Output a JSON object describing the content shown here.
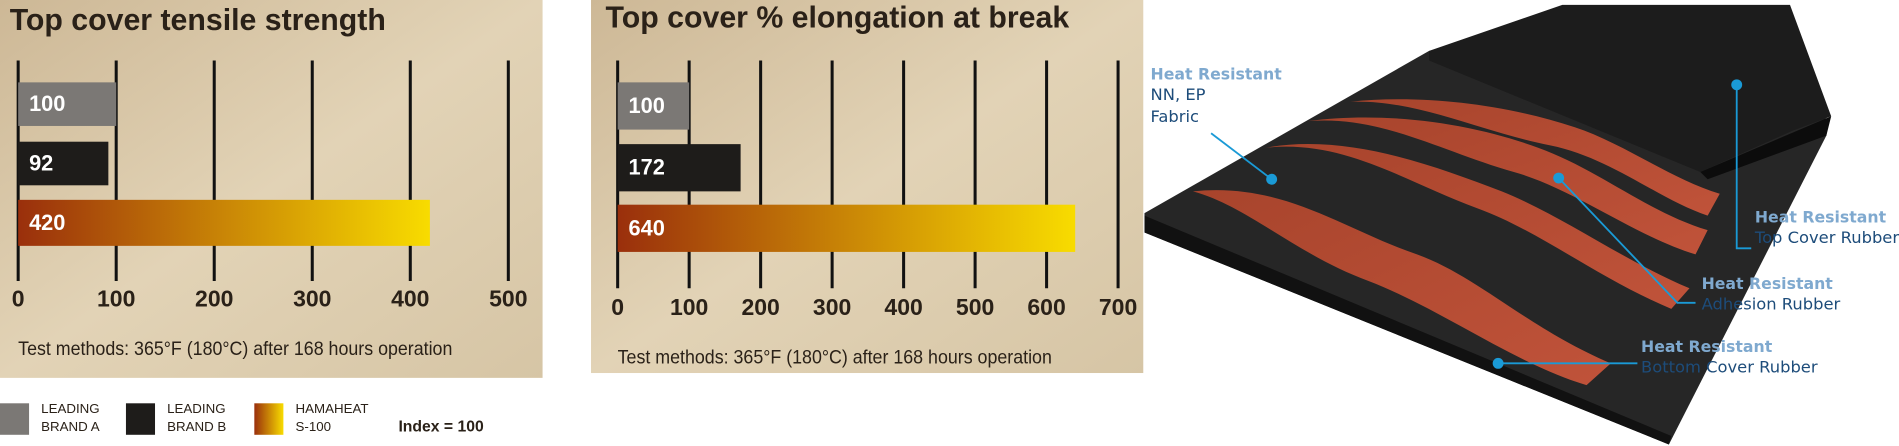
{
  "chart_data": [
    {
      "type": "bar",
      "orientation": "horizontal",
      "title": "Top cover tensile strength",
      "values": [
        100,
        92,
        420
      ],
      "colors": [
        "#7b7875",
        "#1e1c1a",
        [
          "#9a2f0c",
          "#f8dc00"
        ]
      ],
      "xlim": [
        0,
        530
      ],
      "xticks": [
        0,
        100,
        200,
        300,
        400,
        500
      ],
      "note": "Test methods: 365°F (180°C) after 168 hours operation"
    },
    {
      "type": "bar",
      "orientation": "horizontal",
      "title": "Top cover % elongation at break",
      "values": [
        100,
        172,
        640
      ],
      "colors": [
        "#7b7875",
        "#1e1c1a",
        [
          "#9a2f0c",
          "#f8dc00"
        ]
      ],
      "xlim": [
        0,
        720
      ],
      "xticks": [
        0,
        100,
        200,
        300,
        400,
        500,
        600,
        700
      ],
      "note": "Test methods: 365°F (180°C) after 168 hours operation"
    }
  ],
  "legend": {
    "entries": [
      {
        "line1": "LEADING",
        "line2": "BRAND A",
        "color": "#7b7875"
      },
      {
        "line1": "LEADING",
        "line2": "BRAND B",
        "color": "#1e1c1a"
      },
      {
        "line1": "HAMAHEAT",
        "line2": "S-100",
        "color": [
          "#9a2f0c",
          "#f8dc00"
        ]
      }
    ],
    "note": "Index = 100"
  },
  "diagram": {
    "callouts": [
      {
        "heading": "Heat Resistant",
        "lines": [
          "NN, EP",
          "Fabric"
        ]
      },
      {
        "heading": "Heat Resistant",
        "lines": [
          "Top Cover Rubber"
        ]
      },
      {
        "heading": "Heat Resistant",
        "lines": [
          "Adhesion Rubber"
        ]
      },
      {
        "heading": "Heat Resistant",
        "lines": [
          "Bottom Cover Rubber"
        ]
      }
    ]
  }
}
